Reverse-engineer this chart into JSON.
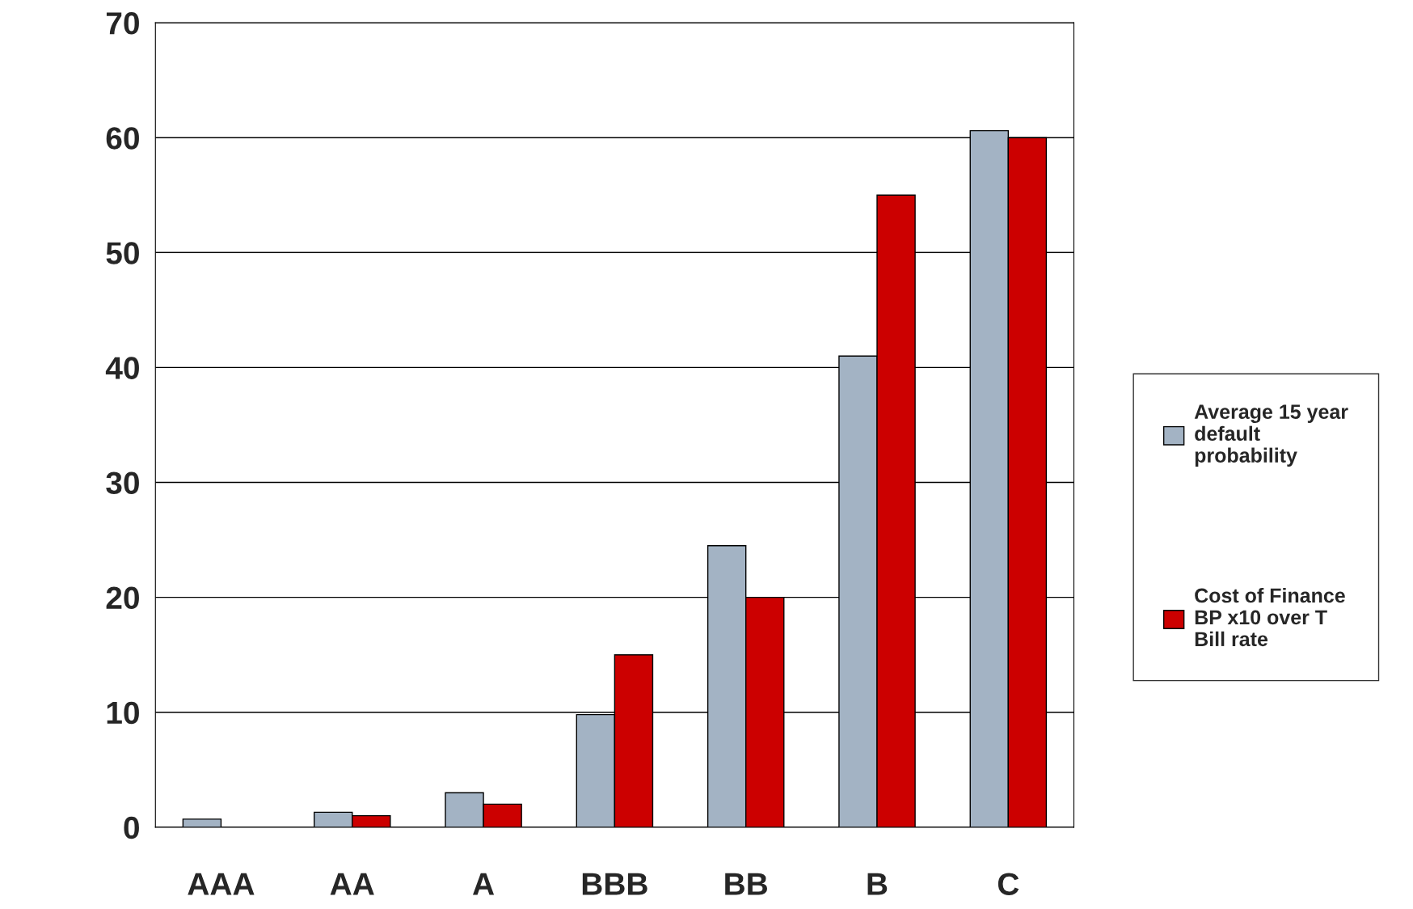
{
  "chart_data": {
    "type": "bar",
    "categories": [
      "AAA",
      "AA",
      "A",
      "BBB",
      "BB",
      "B",
      "C"
    ],
    "series": [
      {
        "name": "Average 15 year default probability",
        "color": "#a3b3c4",
        "values": [
          0.7,
          1.3,
          3.0,
          9.8,
          24.5,
          41.0,
          60.6
        ]
      },
      {
        "name": "Cost of Finance BP x10 over T Bill rate",
        "color": "#cc0000",
        "values": [
          null,
          1.0,
          2.0,
          15.0,
          20.0,
          55.0,
          60.0
        ]
      }
    ],
    "ylim": [
      0,
      70
    ],
    "yticks": [
      0,
      10,
      20,
      30,
      40,
      50,
      60,
      70
    ],
    "grid": "y",
    "legend": "right"
  }
}
